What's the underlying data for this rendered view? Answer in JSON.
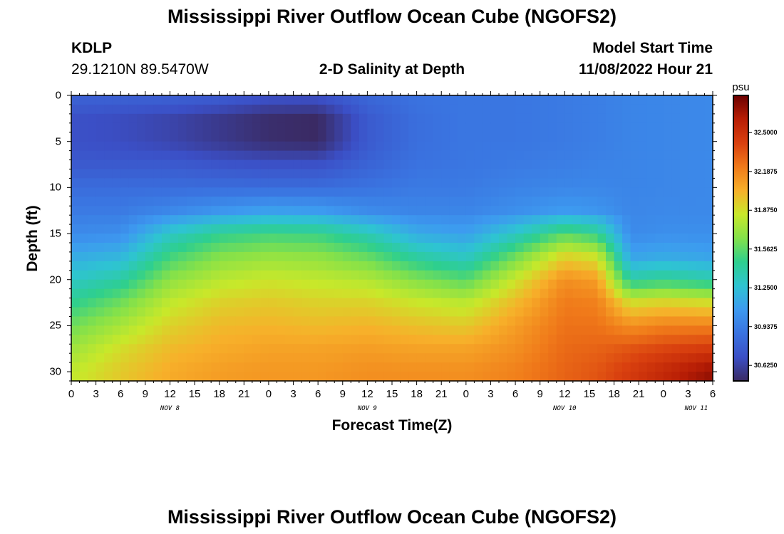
{
  "page": {
    "title": "Mississippi River Outflow Ocean Cube (NGOFS2)",
    "title_repeat": "Mississippi River Outflow Ocean Cube (NGOFS2)",
    "station_id": "KDLP",
    "coords": "29.1210N  89.5470W",
    "subtitle": "2-D Salinity at Depth",
    "model_start_label": "Model Start Time",
    "model_start_value": "11/08/2022 Hour 21"
  },
  "chart_data": {
    "type": "heatmap",
    "title": "2-D Salinity at Depth",
    "xlabel": "Forecast Time(Z)",
    "ylabel": "Depth (ft)",
    "x_ticks": [
      "0",
      "3",
      "6",
      "9",
      "12",
      "15",
      "18",
      "21",
      "0",
      "3",
      "6",
      "9",
      "12",
      "15",
      "18",
      "21",
      "0",
      "3",
      "6",
      "9",
      "12",
      "15",
      "18",
      "21",
      "0",
      "3",
      "6"
    ],
    "day_labels": [
      {
        "label": "NOV 8",
        "at_hour": 12
      },
      {
        "label": "NOV 9",
        "at_hour": 36
      },
      {
        "label": "NOV 10",
        "at_hour": 60
      },
      {
        "label": "NOV 11",
        "at_hour": 76
      }
    ],
    "x_range": [
      0,
      78
    ],
    "y_ticks": [
      "0",
      "5",
      "10",
      "15",
      "20",
      "25",
      "30"
    ],
    "y_range": [
      0,
      31
    ],
    "colorbar": {
      "unit": "psu",
      "range": [
        30.5,
        32.8
      ],
      "ticks": [
        "32.5000",
        "32.1875",
        "31.8750",
        "31.5625",
        "31.2500",
        "30.9375",
        "30.6250"
      ]
    },
    "colormap": [
      "#3a2a63",
      "#3b4fc6",
      "#3a73e0",
      "#3d9af0",
      "#2ec4d2",
      "#2ecf8e",
      "#84e14a",
      "#c8e82a",
      "#f7b02a",
      "#f07a1a",
      "#d9400f",
      "#b81e05",
      "#6b0000"
    ],
    "columns": [
      {
        "hour": 0,
        "sal": [
          30.8,
          30.7,
          30.7,
          30.75,
          30.85,
          30.92,
          31.0,
          31.15,
          31.3,
          31.45,
          31.6,
          31.72,
          31.82
        ]
      },
      {
        "hour": 6,
        "sal": [
          30.8,
          30.68,
          30.68,
          30.75,
          30.85,
          30.92,
          31.02,
          31.2,
          31.4,
          31.6,
          31.75,
          31.88,
          31.95
        ]
      },
      {
        "hour": 12,
        "sal": [
          30.8,
          30.64,
          30.64,
          30.75,
          30.85,
          30.98,
          31.3,
          31.5,
          31.68,
          31.82,
          31.92,
          32.0,
          32.05
        ]
      },
      {
        "hour": 18,
        "sal": [
          30.78,
          30.58,
          30.58,
          30.72,
          30.85,
          31.05,
          31.45,
          31.65,
          31.8,
          31.92,
          32.0,
          32.05,
          32.1
        ]
      },
      {
        "hour": 24,
        "sal": [
          30.72,
          30.52,
          30.52,
          30.7,
          30.85,
          31.1,
          31.5,
          31.7,
          31.85,
          31.95,
          32.02,
          32.08,
          32.12
        ]
      },
      {
        "hour": 30,
        "sal": [
          30.72,
          30.5,
          30.5,
          30.7,
          30.85,
          31.08,
          31.48,
          31.68,
          31.82,
          31.92,
          32.0,
          32.08,
          32.12
        ]
      },
      {
        "hour": 36,
        "sal": [
          30.82,
          30.75,
          30.75,
          30.8,
          30.88,
          31.0,
          31.35,
          31.58,
          31.78,
          31.92,
          32.02,
          32.1,
          32.15
        ]
      },
      {
        "hour": 42,
        "sal": [
          30.88,
          30.86,
          30.86,
          30.88,
          30.92,
          30.97,
          31.15,
          31.4,
          31.65,
          31.85,
          31.98,
          32.08,
          32.15
        ]
      },
      {
        "hour": 48,
        "sal": [
          30.9,
          30.9,
          30.9,
          30.9,
          30.92,
          30.97,
          31.1,
          31.3,
          31.55,
          31.8,
          31.95,
          32.08,
          32.15
        ]
      },
      {
        "hour": 54,
        "sal": [
          30.9,
          30.9,
          30.9,
          30.92,
          30.96,
          31.02,
          31.3,
          31.6,
          31.85,
          32.0,
          32.1,
          32.15,
          32.2
        ]
      },
      {
        "hour": 60,
        "sal": [
          30.92,
          30.92,
          30.92,
          30.94,
          30.98,
          31.08,
          31.55,
          31.92,
          32.15,
          32.22,
          32.25,
          32.28,
          32.3
        ]
      },
      {
        "hour": 64,
        "sal": [
          30.94,
          30.94,
          30.94,
          30.96,
          30.98,
          31.05,
          31.45,
          31.85,
          32.1,
          32.2,
          32.25,
          32.3,
          32.35
        ]
      },
      {
        "hour": 68,
        "sal": [
          30.97,
          30.97,
          30.97,
          30.97,
          30.97,
          30.98,
          31.0,
          31.12,
          31.4,
          31.88,
          32.15,
          32.35,
          32.45
        ]
      },
      {
        "hour": 72,
        "sal": [
          30.98,
          30.98,
          30.98,
          30.98,
          30.98,
          30.99,
          31.02,
          31.15,
          31.45,
          31.92,
          32.2,
          32.4,
          32.55
        ]
      },
      {
        "hour": 78,
        "sal": [
          30.99,
          30.99,
          30.99,
          30.99,
          30.99,
          30.99,
          31.02,
          31.12,
          31.38,
          31.88,
          32.2,
          32.45,
          32.7
        ]
      }
    ],
    "depth_levels": [
      0,
      2.5,
      5,
      7.5,
      10,
      12.5,
      15,
      17.5,
      20,
      22.5,
      25,
      27.5,
      30
    ]
  }
}
